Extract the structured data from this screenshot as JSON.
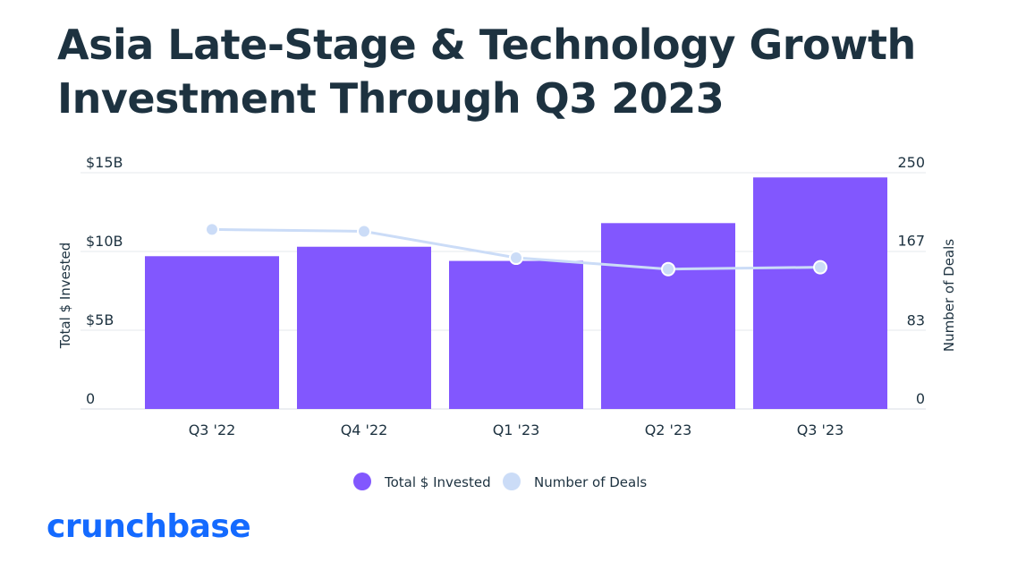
{
  "title_lines": [
    "Asia Late-Stage & Technology Growth",
    "Investment Through Q3 2023"
  ],
  "brand": "crunchbase",
  "colors": {
    "bars": "#8257fe",
    "line": "#cbdcf7",
    "text": "#1d3240",
    "grid": "#e6e9ee",
    "brand": "#146aff"
  },
  "chart_data": {
    "type": "bar",
    "title": "Asia Late-Stage & Technology Growth Investment Through Q3 2023",
    "categories": [
      "Q3 '22",
      "Q4 '22",
      "Q1 '23",
      "Q2 '23",
      "Q3 '23"
    ],
    "series": [
      {
        "name": "Total $ Invested",
        "type": "bar",
        "axis": "left",
        "unit": "B",
        "values": [
          9.7,
          10.3,
          9.4,
          11.8,
          14.7
        ]
      },
      {
        "name": "Number of Deals",
        "type": "line",
        "axis": "right",
        "values": [
          190,
          188,
          160,
          148,
          150
        ]
      }
    ],
    "left_axis": {
      "label": "Total $ Invested",
      "ticks": [
        "0",
        "$5B",
        "$10B",
        "$15B"
      ],
      "tick_values": [
        0,
        5,
        10,
        15
      ],
      "range": [
        0,
        15
      ]
    },
    "right_axis": {
      "label": "Number of Deals",
      "ticks": [
        "0",
        "83",
        "167",
        "250"
      ],
      "tick_values": [
        0,
        83,
        167,
        250
      ],
      "range": [
        0,
        250
      ]
    },
    "legend": [
      "Total $ Invested",
      "Number of Deals"
    ],
    "legend_position": "bottom-center",
    "grid": true
  }
}
